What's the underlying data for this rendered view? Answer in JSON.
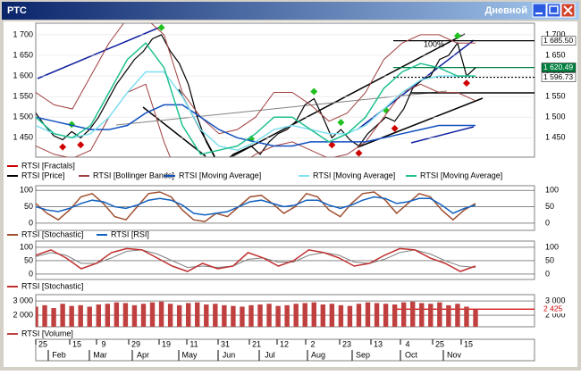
{
  "window": {
    "title": "РТС",
    "timeframe": "Дневной"
  },
  "panels": [
    {
      "type": "line",
      "ylim": [
        1403,
        1728
      ],
      "yticks": [
        {
          "value": 1700,
          "label": "1 700"
        },
        {
          "value": 1650,
          "label": "1 650"
        },
        {
          "value": 1600,
          "label": "1 600"
        },
        {
          "value": 1550,
          "label": "1 550"
        },
        {
          "value": 1500,
          "label": "1 500"
        },
        {
          "value": 1450,
          "label": "1 450"
        }
      ],
      "levels": [
        {
          "value": 1685.5,
          "label": "1 685.50",
          "color": "#000000"
        },
        {
          "value": 1620.49,
          "label": "1 620.49",
          "color": "#008040"
        },
        {
          "value": 1596.73,
          "label": "1 596.73",
          "color": "#000000"
        }
      ],
      "annotation": "100%",
      "series": [
        {
          "name": "RTSI [Fractals]",
          "color": "#d00000",
          "up": [
            null,
            null,
            null,
            null,
            1465,
            null,
            null,
            null,
            null,
            null,
            null,
            null,
            null,
            null,
            1700,
            null,
            null,
            null,
            null,
            null,
            null,
            null,
            null,
            null,
            1430,
            null,
            null,
            null,
            null,
            null,
            null,
            1545,
            null,
            null,
            1470,
            null,
            null,
            null,
            null,
            1500,
            null,
            null,
            null,
            null,
            null,
            null,
            null,
            1680,
            null,
            null
          ],
          "down": [
            null,
            null,
            null,
            1445,
            null,
            1450,
            null,
            null,
            null,
            null,
            null,
            null,
            null,
            null,
            null,
            null,
            null,
            null,
            null,
            null,
            null,
            1390,
            null,
            null,
            null,
            1410,
            null,
            null,
            null,
            null,
            null,
            null,
            null,
            1450,
            null,
            null,
            1430,
            null,
            null,
            null,
            1490,
            null,
            null,
            null,
            null,
            null,
            null,
            null,
            1600,
            null
          ]
        },
        {
          "name": "RTSI [Price]",
          "color": "#000000",
          "values": [
            1510,
            1480,
            1455,
            1445,
            1465,
            1450,
            1470,
            1500,
            1540,
            1580,
            1610,
            1640,
            1660,
            1690,
            1700,
            1660,
            1630,
            1580,
            1500,
            1440,
            1400,
            1390,
            1410,
            1420,
            1430,
            1410,
            1440,
            1460,
            1470,
            1490,
            1530,
            1545,
            1500,
            1450,
            1470,
            1445,
            1430,
            1460,
            1480,
            1500,
            1490,
            1520,
            1570,
            1590,
            1600,
            1640,
            1650,
            1680,
            1600,
            1620
          ]
        },
        {
          "name": "RTSI [Bollinger Bands]",
          "color": "#a04040",
          "upper": [
            1560,
            1530,
            1520,
            1600,
            1680,
            1740,
            1740,
            1700,
            1560,
            1500,
            1460,
            1470,
            1500,
            1560,
            1560,
            1530,
            1490,
            1510,
            1560,
            1640,
            1680,
            1700,
            1700,
            1680,
            1680
          ],
          "lower": [
            1430,
            1410,
            1400,
            1420,
            1500,
            1560,
            1580,
            1440,
            1330,
            1330,
            1370,
            1380,
            1410,
            1430,
            1440,
            1420,
            1400,
            1410,
            1440,
            1500,
            1560,
            1580,
            1560,
            1560,
            1540
          ]
        },
        {
          "name": "RTSI [Moving Average]",
          "color": "#1050c0",
          "values": [
            1500,
            1490,
            1480,
            1470,
            1470,
            1480,
            1510,
            1530,
            1530,
            1500,
            1470,
            1450,
            1440,
            1430,
            1430,
            1440,
            1440,
            1440,
            1440,
            1450,
            1460,
            1470,
            1480,
            1480,
            1480
          ]
        },
        {
          "name": "RTSI [Moving Average]",
          "color": "#80e0f0",
          "values": [
            1480,
            1460,
            1450,
            1460,
            1500,
            1560,
            1610,
            1610,
            1550,
            1470,
            1430,
            1420,
            1440,
            1470,
            1480,
            1470,
            1460,
            1460,
            1480,
            1520,
            1560,
            1590,
            1600,
            1600,
            1600
          ]
        },
        {
          "name": "RTSI [Moving Average]",
          "color": "#20c090",
          "values": [
            1500,
            1460,
            1450,
            1480,
            1560,
            1640,
            1680,
            1620,
            1480,
            1410,
            1420,
            1430,
            1460,
            1500,
            1500,
            1470,
            1440,
            1460,
            1500,
            1570,
            1610,
            1630,
            1620,
            1600,
            1600
          ]
        }
      ]
    },
    {
      "type": "line",
      "ylim": [
        -22,
        114
      ],
      "yticks": [
        0,
        50,
        100
      ],
      "series": [
        {
          "name": "RTSI [Stochastic]",
          "color": "#a05030",
          "values": [
            60,
            30,
            10,
            40,
            80,
            90,
            60,
            20,
            10,
            50,
            90,
            95,
            80,
            40,
            10,
            5,
            30,
            20,
            50,
            80,
            85,
            60,
            30,
            50,
            90,
            80,
            40,
            20,
            60,
            90,
            95,
            70,
            30,
            60,
            90,
            80,
            40,
            10,
            40,
            60
          ]
        },
        {
          "name": "RTSI [RSI]",
          "color": "#1060c0",
          "values": [
            50,
            40,
            35,
            45,
            60,
            70,
            65,
            50,
            45,
            55,
            70,
            75,
            70,
            55,
            30,
            25,
            30,
            35,
            50,
            65,
            70,
            60,
            50,
            55,
            70,
            70,
            55,
            45,
            55,
            70,
            80,
            75,
            60,
            65,
            75,
            75,
            55,
            30,
            45,
            55
          ]
        }
      ]
    },
    {
      "type": "line",
      "ylim": [
        -20,
        123
      ],
      "yticks": [
        0,
        50,
        100
      ],
      "series": [
        {
          "name": "RTSI [Stochastic]",
          "color": "#c03030",
          "values": [
            70,
            90,
            60,
            20,
            40,
            80,
            95,
            90,
            60,
            30,
            10,
            40,
            20,
            30,
            80,
            60,
            30,
            50,
            90,
            80,
            60,
            30,
            40,
            70,
            95,
            90,
            60,
            40,
            10,
            30
          ],
          "signal": [
            65,
            80,
            70,
            40,
            40,
            60,
            85,
            90,
            75,
            50,
            25,
            30,
            25,
            30,
            55,
            60,
            45,
            45,
            70,
            80,
            70,
            45,
            40,
            55,
            80,
            90,
            75,
            50,
            30,
            25
          ]
        }
      ]
    },
    {
      "type": "bar",
      "ylim": [
        1190,
        3440
      ],
      "yticks": [
        {
          "value": 3000,
          "label": "3 000"
        },
        {
          "value": 2000,
          "label": "2 000"
        }
      ],
      "levels": [
        {
          "value": 2425,
          "label": "2 425",
          "color": "#d00000"
        }
      ],
      "series": [
        {
          "name": "RTSI [Volume]",
          "color": "#c04040",
          "values": [
            2600,
            2700,
            2500,
            2800,
            2650,
            2700,
            2600,
            2750,
            2800,
            2900,
            2850,
            2700,
            2800,
            2900,
            2950,
            2800,
            2700,
            2850,
            2900,
            2750,
            2800,
            2700,
            2650,
            2600,
            2700,
            2750,
            2800,
            2650,
            2700,
            2800,
            2850,
            2900,
            2750,
            2800,
            2700,
            2650,
            2800,
            2900,
            2850,
            2800,
            2750,
            2900,
            2950,
            2850,
            2800,
            2900,
            2700,
            2800,
            2600,
            2425
          ]
        }
      ]
    }
  ],
  "x_axis": {
    "days": [
      "25",
      "15",
      "9",
      "29",
      "19",
      "11",
      "31",
      "21",
      "12",
      "2",
      "23",
      "13",
      "4",
      "25",
      "15"
    ],
    "months": [
      "Feb",
      "Mar",
      "Apr",
      "May",
      "Jun",
      "Jul",
      "Aug",
      "Sep",
      "Oct",
      "Nov"
    ]
  }
}
